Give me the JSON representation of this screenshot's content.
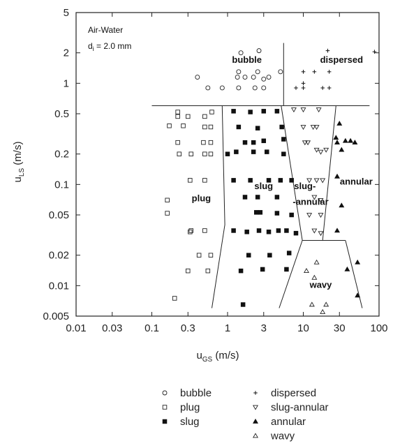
{
  "chart_data": {
    "type": "scatter",
    "xlabel": "u",
    "xlabel_sub": "GS",
    "xlabel_unit": " (m/s)",
    "ylabel": "u",
    "ylabel_sub": "LS",
    "ylabel_unit": " (m/s)",
    "x_scale": "log",
    "y_scale": "log",
    "xlim": [
      0.01,
      100
    ],
    "ylim": [
      0.005,
      5
    ],
    "x_ticks": [
      0.01,
      0.03,
      0.1,
      0.3,
      1,
      3,
      10,
      30,
      100
    ],
    "x_tick_labels": [
      "0.01",
      "0.03",
      "0.1",
      "0.3",
      "1",
      "3",
      "10",
      "30",
      "100"
    ],
    "y_ticks": [
      0.005,
      0.01,
      0.02,
      0.05,
      0.1,
      0.2,
      0.5,
      1,
      2,
      5
    ],
    "y_tick_labels": [
      "0.005",
      "0.01",
      "0.02",
      "0.05",
      "0.1",
      "0.2",
      "0.5",
      "1",
      "2",
      "5"
    ],
    "annotation_line1": "Air-Water",
    "annotation_line2_main": "d",
    "annotation_line2_sub": "i",
    "annotation_line2_rest": " = 2.0 mm",
    "legend_position": "bottom",
    "regions": [
      {
        "label": "bubble",
        "x": 1.8,
        "y": 1.6
      },
      {
        "label": "dispersed",
        "x": 32,
        "y": 1.6
      },
      {
        "label": "plug",
        "x": 0.45,
        "y": 0.068
      },
      {
        "label": "slug",
        "x": 3.0,
        "y": 0.09
      },
      {
        "label": "slug-",
        "x": 10.5,
        "y": 0.09
      },
      {
        "label": "-annular",
        "x": 12.5,
        "y": 0.063
      },
      {
        "label": "annular",
        "x": 50,
        "y": 0.1
      },
      {
        "label": "wavy",
        "x": 17,
        "y": 0.0095
      }
    ],
    "boundaries": [
      {
        "name": "bubble-boundary",
        "points": [
          [
            0.1,
            0.6
          ],
          [
            75,
            0.6
          ]
        ]
      },
      {
        "name": "bubble-dispersed",
        "points": [
          [
            5.5,
            2.5
          ],
          [
            5.5,
            0.6
          ]
        ]
      },
      {
        "name": "plug-slug",
        "points": [
          [
            0.85,
            0.6
          ],
          [
            0.92,
            0.04
          ],
          [
            0.62,
            0.006
          ]
        ]
      },
      {
        "name": "slug-slugannular",
        "points": [
          [
            5.1,
            0.6
          ],
          [
            9.7,
            0.028
          ],
          [
            4.8,
            0.006
          ]
        ]
      },
      {
        "name": "slugannular-annular",
        "points": [
          [
            27,
            0.6
          ],
          [
            18,
            0.028
          ]
        ]
      },
      {
        "name": "wavy-top",
        "points": [
          [
            9.7,
            0.028
          ],
          [
            36,
            0.028
          ]
        ]
      },
      {
        "name": "wavy-right",
        "points": [
          [
            36,
            0.028
          ],
          [
            60,
            0.006
          ]
        ]
      }
    ],
    "series": [
      {
        "name": "bubble",
        "marker": "circle-open",
        "points": [
          [
            1.5,
            2.0
          ],
          [
            2.6,
            2.1
          ],
          [
            0.4,
            1.15
          ],
          [
            1.4,
            1.3
          ],
          [
            1.35,
            1.15
          ],
          [
            1.7,
            1.15
          ],
          [
            2.2,
            1.15
          ],
          [
            2.5,
            1.3
          ],
          [
            3.0,
            1.1
          ],
          [
            3.5,
            1.15
          ],
          [
            5.0,
            1.3
          ],
          [
            0.55,
            0.9
          ],
          [
            0.85,
            0.9
          ],
          [
            1.4,
            0.9
          ],
          [
            2.3,
            0.9
          ],
          [
            3.0,
            0.9
          ]
        ]
      },
      {
        "name": "plug",
        "marker": "square-open",
        "points": [
          [
            0.22,
            0.52
          ],
          [
            0.22,
            0.47
          ],
          [
            0.3,
            0.47
          ],
          [
            0.5,
            0.47
          ],
          [
            0.62,
            0.52
          ],
          [
            0.17,
            0.38
          ],
          [
            0.26,
            0.38
          ],
          [
            0.5,
            0.37
          ],
          [
            0.6,
            0.37
          ],
          [
            0.22,
            0.26
          ],
          [
            0.48,
            0.26
          ],
          [
            0.6,
            0.26
          ],
          [
            0.23,
            0.2
          ],
          [
            0.33,
            0.2
          ],
          [
            0.5,
            0.2
          ],
          [
            0.6,
            0.2
          ],
          [
            0.32,
            0.11
          ],
          [
            0.5,
            0.11
          ],
          [
            0.16,
            0.07
          ],
          [
            0.16,
            0.052
          ],
          [
            0.33,
            0.035
          ],
          [
            0.5,
            0.035
          ],
          [
            0.32,
            0.034
          ],
          [
            0.42,
            0.02
          ],
          [
            0.6,
            0.02
          ],
          [
            0.3,
            0.014
          ],
          [
            0.55,
            0.014
          ],
          [
            0.2,
            0.0075
          ]
        ]
      },
      {
        "name": "slug",
        "marker": "square-filled",
        "points": [
          [
            1.2,
            0.53
          ],
          [
            2.0,
            0.52
          ],
          [
            3.0,
            0.53
          ],
          [
            4.5,
            0.53
          ],
          [
            1.4,
            0.37
          ],
          [
            2.5,
            0.36
          ],
          [
            5.2,
            0.37
          ],
          [
            1.7,
            0.26
          ],
          [
            2.2,
            0.26
          ],
          [
            3.0,
            0.27
          ],
          [
            5.5,
            0.28
          ],
          [
            1.0,
            0.2
          ],
          [
            1.3,
            0.21
          ],
          [
            2.2,
            0.21
          ],
          [
            3.3,
            0.21
          ],
          [
            5.5,
            0.2
          ],
          [
            1.2,
            0.11
          ],
          [
            2.0,
            0.11
          ],
          [
            3.5,
            0.11
          ],
          [
            5.0,
            0.11
          ],
          [
            7.0,
            0.11
          ],
          [
            1.7,
            0.075
          ],
          [
            2.5,
            0.075
          ],
          [
            4.5,
            0.075
          ],
          [
            2.4,
            0.053
          ],
          [
            2.7,
            0.053
          ],
          [
            4.5,
            0.052
          ],
          [
            7.0,
            0.05
          ],
          [
            1.2,
            0.035
          ],
          [
            1.8,
            0.034
          ],
          [
            2.6,
            0.035
          ],
          [
            3.5,
            0.034
          ],
          [
            4.7,
            0.035
          ],
          [
            6.0,
            0.035
          ],
          [
            8.0,
            0.033
          ],
          [
            1.9,
            0.02
          ],
          [
            3.6,
            0.02
          ],
          [
            6.5,
            0.021
          ],
          [
            1.5,
            0.014
          ],
          [
            2.9,
            0.0145
          ],
          [
            6.0,
            0.0145
          ],
          [
            1.6,
            0.0065
          ]
        ]
      },
      {
        "name": "dispersed",
        "marker": "plus",
        "points": [
          [
            21,
            2.1
          ],
          [
            87,
            2.05
          ],
          [
            10,
            1.3
          ],
          [
            14,
            1.3
          ],
          [
            22,
            1.3
          ],
          [
            10,
            1.0
          ],
          [
            8.0,
            0.9
          ],
          [
            10,
            0.9
          ],
          [
            18,
            0.9
          ],
          [
            22,
            0.9
          ]
        ]
      },
      {
        "name": "slug-annular",
        "marker": "triangle-down-open",
        "points": [
          [
            7.5,
            0.55
          ],
          [
            10,
            0.55
          ],
          [
            16,
            0.55
          ],
          [
            10,
            0.37
          ],
          [
            13.5,
            0.37
          ],
          [
            15,
            0.37
          ],
          [
            10.5,
            0.26
          ],
          [
            11.5,
            0.26
          ],
          [
            15,
            0.22
          ],
          [
            17,
            0.21
          ],
          [
            20,
            0.22
          ],
          [
            12,
            0.11
          ],
          [
            15,
            0.11
          ],
          [
            18,
            0.11
          ],
          [
            14,
            0.075
          ],
          [
            17,
            0.07
          ],
          [
            12,
            0.05
          ],
          [
            17,
            0.05
          ],
          [
            14,
            0.035
          ],
          [
            17,
            0.033
          ]
        ]
      },
      {
        "name": "annular",
        "marker": "triangle-up-filled",
        "points": [
          [
            30,
            0.4
          ],
          [
            27,
            0.29
          ],
          [
            28,
            0.26
          ],
          [
            36,
            0.27
          ],
          [
            42,
            0.27
          ],
          [
            48,
            0.26
          ],
          [
            32,
            0.22
          ],
          [
            28,
            0.12
          ],
          [
            32,
            0.062
          ],
          [
            28,
            0.035
          ],
          [
            52,
            0.017
          ],
          [
            38,
            0.0145
          ],
          [
            52,
            0.008
          ]
        ]
      },
      {
        "name": "wavy",
        "marker": "triangle-up-open",
        "points": [
          [
            15,
            0.017
          ],
          [
            11,
            0.014
          ],
          [
            14,
            0.012
          ],
          [
            13,
            0.0065
          ],
          [
            18,
            0.0055
          ],
          [
            20,
            0.0065
          ]
        ]
      }
    ]
  }
}
